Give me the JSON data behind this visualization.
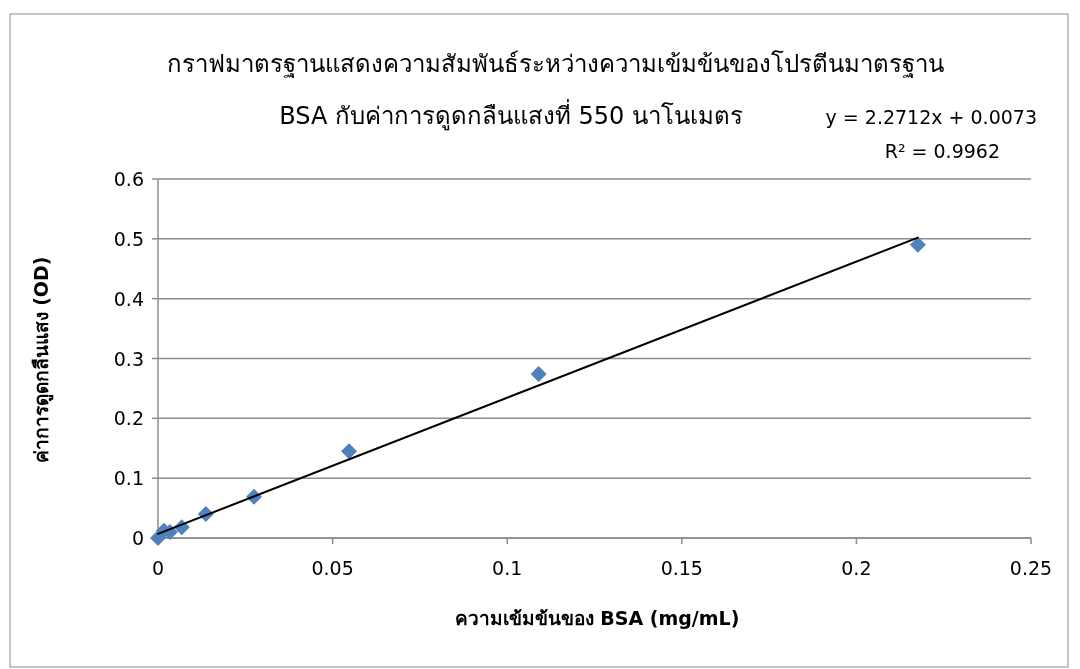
{
  "chart_data": {
    "type": "scatter",
    "title": "กราฟมาตรฐานแสดงความสัมพันธ์ระหว่างความเข้มข้นของโปรตีนมาตรฐาน",
    "subtitle": "BSA กับค่าการดูดกลืนแสงที่ 550 นาโนเมตร",
    "xlabel": "ความเข้มข้นของ BSA (mg/mL)",
    "ylabel": "ค่าการดูดกลืนแสง (OD)",
    "annotations": [
      "y = 2.2712x + 0.0073",
      "R² = 0.9962"
    ],
    "series": [
      {
        "color": "#4f81bd",
        "marker": "diamond",
        "x": [
          0,
          0.0017,
          0.0034,
          0.0068,
          0.0137,
          0.0275,
          0.0547,
          0.109,
          0.2176
        ],
        "values": [
          0,
          0.012,
          0.01,
          0.018,
          0.04,
          0.069,
          0.145,
          0.274,
          0.49
        ]
      },
      {
        "type": "line",
        "color": "#000000",
        "x": [
          0,
          0.2176
        ],
        "values": [
          0.007,
          0.502
        ]
      }
    ],
    "xlim": [
      0,
      0.25
    ],
    "xticks": [
      0,
      0.05,
      0.1,
      0.15,
      0.2,
      0.25
    ],
    "ylim": [
      0,
      0.6
    ],
    "yticks": [
      0,
      0.1,
      0.2,
      0.3,
      0.4,
      0.5,
      0.6
    ],
    "grid": "y"
  }
}
